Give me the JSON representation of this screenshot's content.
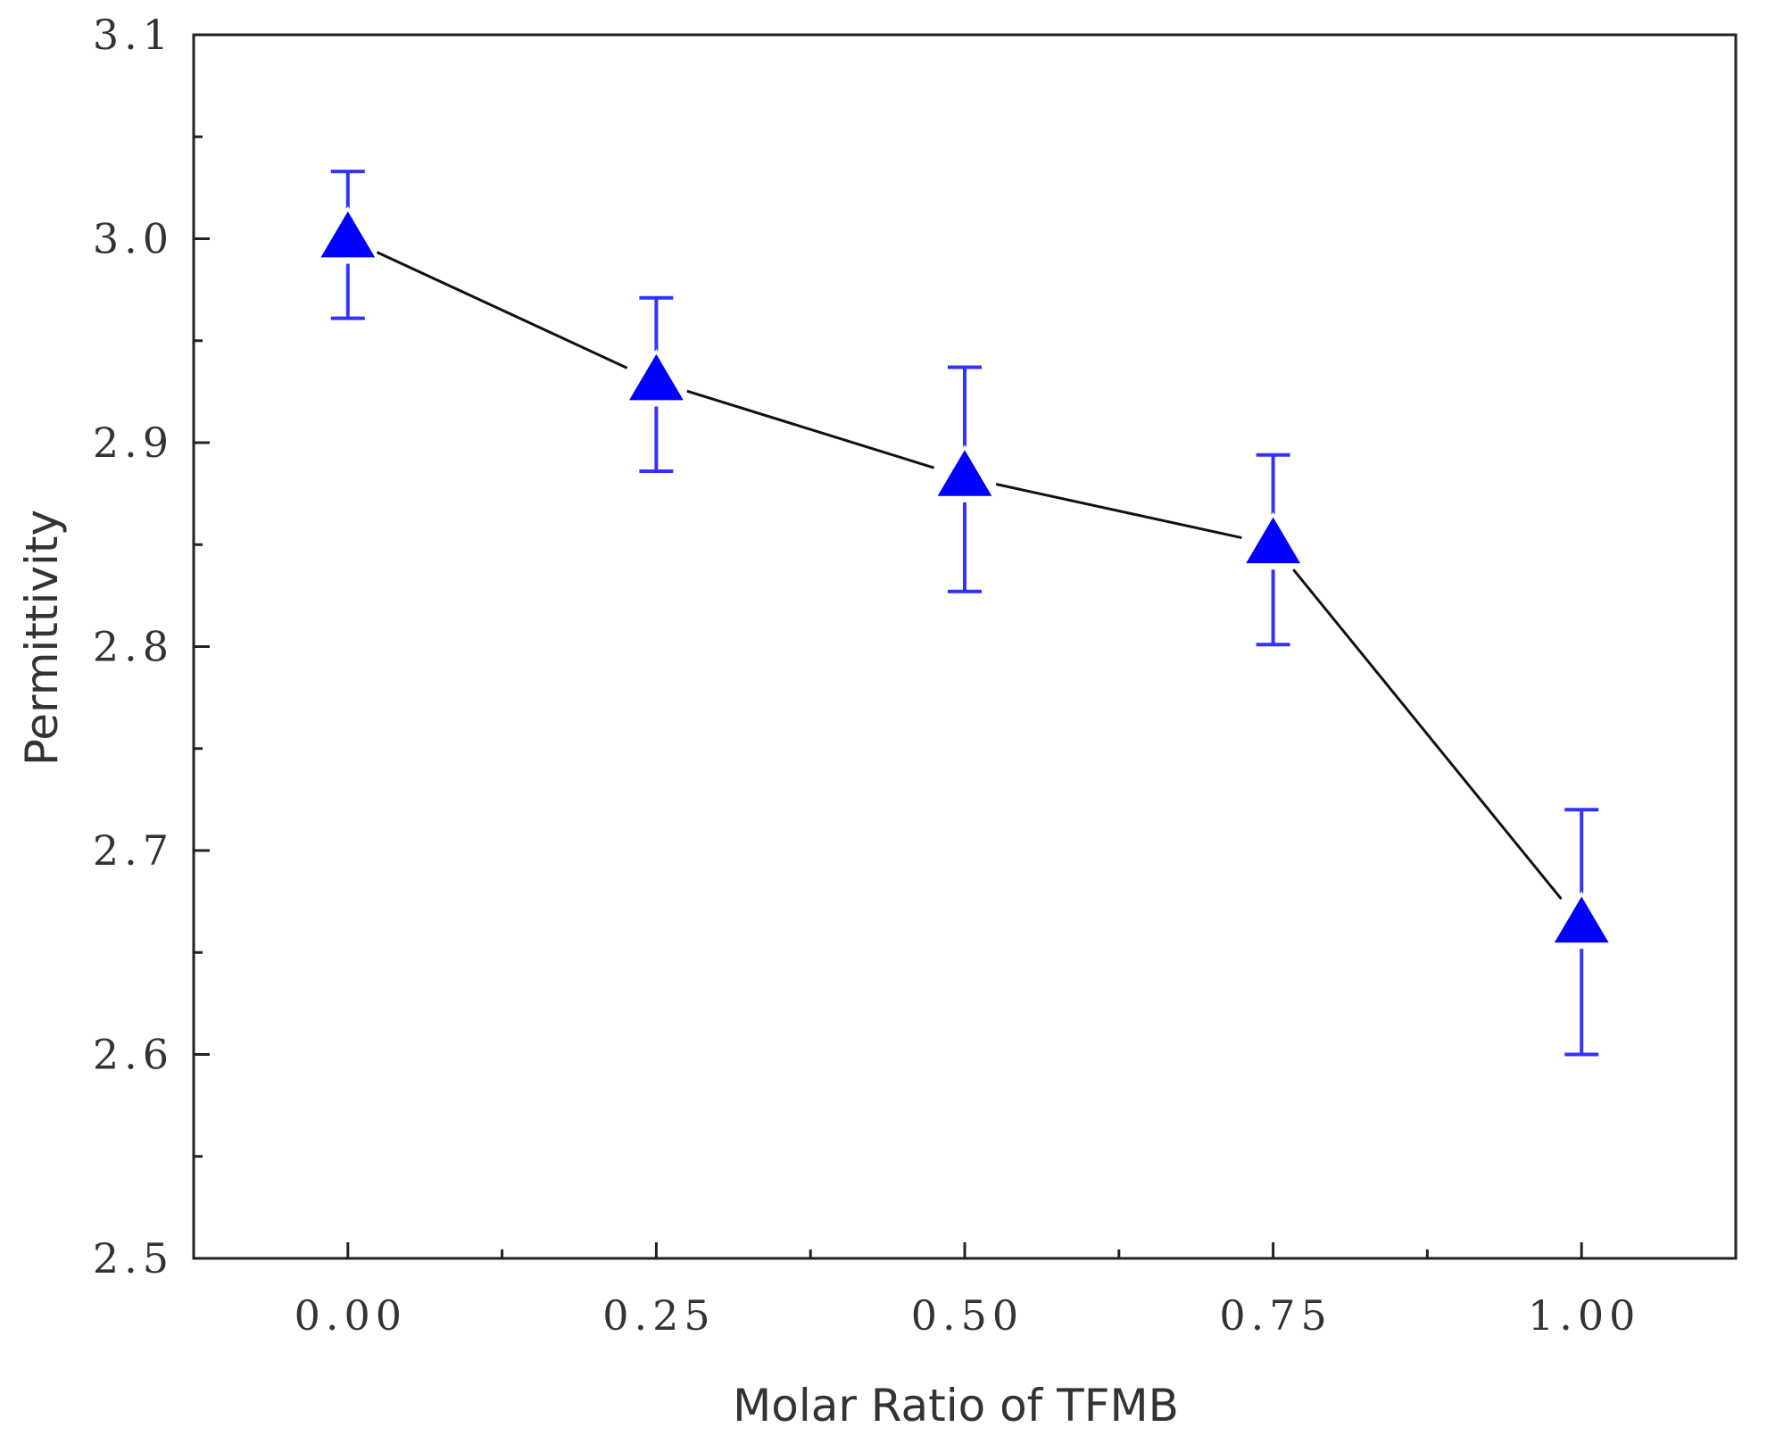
{
  "chart_data": {
    "type": "line",
    "title": "",
    "xlabel": "Molar Ratio of TFMB",
    "ylabel": "Permittivity",
    "xlim": [
      -0.125,
      1.125
    ],
    "ylim": [
      2.5,
      3.1
    ],
    "x_ticks": [
      0,
      0.25,
      0.5,
      0.75,
      1.0
    ],
    "x_tick_labels": [
      "0.00",
      "0.25",
      "0.50",
      "0.75",
      "1.00"
    ],
    "y_ticks": [
      2.5,
      2.6,
      2.7,
      2.8,
      2.9,
      3.0,
      3.1
    ],
    "y_tick_labels": [
      "2.5",
      "2.6",
      "2.7",
      "2.8",
      "2.9",
      "3.0",
      "3.1"
    ],
    "grid": false,
    "series": [
      {
        "name": "Permittivity",
        "x": [
          0,
          0.25,
          0.5,
          0.75,
          1.0
        ],
        "values": [
          3.0,
          2.93,
          2.883,
          2.85,
          2.664
        ],
        "error_upper": [
          3.033,
          2.971,
          2.937,
          2.894,
          2.72
        ],
        "error_lower": [
          2.961,
          2.886,
          2.827,
          2.801,
          2.6
        ],
        "marker": "triangle",
        "marker_color": "#0000ff",
        "errorbar_color": "#3333ff",
        "line_color": "#111111"
      }
    ]
  }
}
